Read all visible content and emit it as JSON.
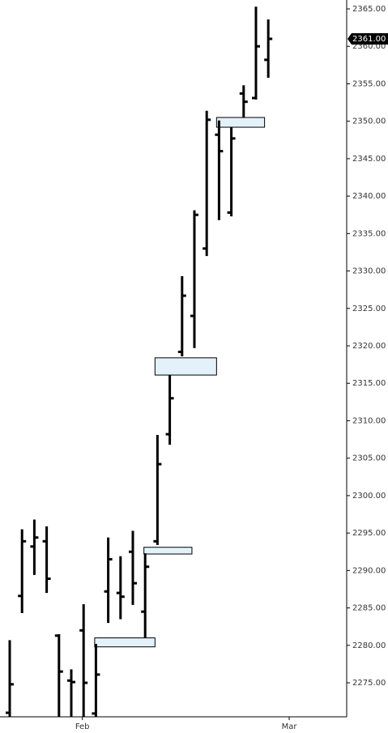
{
  "chart_data": {
    "type": "ohlc",
    "x": [
      0,
      1,
      2,
      3,
      4,
      5,
      6,
      7,
      8,
      9,
      10,
      11,
      12,
      13,
      14,
      15,
      16,
      17,
      18,
      19,
      20,
      21
    ],
    "open": [
      2271.0,
      2286.6,
      2293.2,
      2293.9,
      2281.3,
      2275.3,
      2282.0,
      2270.9,
      2287.2,
      2287.0,
      2292.5,
      2284.5,
      2293.9,
      2308.2,
      2319.2,
      2324.0,
      2333.0,
      2348.2,
      2337.8,
      2353.7,
      2353.1,
      2358.2
    ],
    "high": [
      2280.7,
      2295.5,
      2296.8,
      2295.9,
      2281.5,
      2276.8,
      2285.5,
      2280.2,
      2294.4,
      2291.9,
      2295.3,
      2292.3,
      2308.1,
      2316.1,
      2329.3,
      2338.1,
      2351.4,
      2350.1,
      2349.2,
      2354.8,
      2365.3,
      2363.6
    ],
    "low": [
      2270.5,
      2284.3,
      2289.4,
      2287.0,
      2270.5,
      2270.5,
      2270.5,
      2270.5,
      2283.0,
      2283.5,
      2285.4,
      2281.0,
      2293.4,
      2306.8,
      2318.6,
      2319.7,
      2332.0,
      2336.8,
      2337.3,
      2350.5,
      2352.9,
      2355.8
    ],
    "close": [
      2274.8,
      2293.9,
      2294.4,
      2288.9,
      2276.5,
      2275.1,
      2275.0,
      2276.1,
      2291.5,
      2286.5,
      2288.3,
      2290.5,
      2304.2,
      2313.0,
      2326.7,
      2337.5,
      2350.2,
      2346.0,
      2347.7,
      2352.6,
      2360.0,
      2361.0
    ],
    "color": "#000000",
    "gaps": [
      {
        "x": [
          6.9,
          11.8
        ],
        "y": [
          2279.8,
          2281.0
        ]
      },
      {
        "x": [
          10.9,
          14.8
        ],
        "y": [
          2292.2,
          2293.1
        ]
      },
      {
        "x": [
          11.8,
          16.8
        ],
        "y": [
          2316.1,
          2318.4
        ]
      },
      {
        "x": [
          16.8,
          20.7
        ],
        "y": [
          2349.2,
          2350.5
        ]
      }
    ],
    "gap_color": "#e3f1fb",
    "last_price": {
      "value": 2361,
      "label": "2361.00"
    },
    "xlim": [
      -0.79,
      27.37
    ],
    "xticks": [
      {
        "value": 5.9,
        "label": "Feb"
      },
      {
        "value": 22.7,
        "label": "Mar"
      }
    ],
    "ylim": [
      2270.46,
      2366.19
    ],
    "yticks": [
      {
        "value": 2275,
        "label": "2275.00"
      },
      {
        "value": 2280,
        "label": "2280.00"
      },
      {
        "value": 2285,
        "label": "2285.00"
      },
      {
        "value": 2290,
        "label": "2290.00"
      },
      {
        "value": 2295,
        "label": "2295.00"
      },
      {
        "value": 2300,
        "label": "2300.00"
      },
      {
        "value": 2305,
        "label": "2305.00"
      },
      {
        "value": 2310,
        "label": "2310.00"
      },
      {
        "value": 2315,
        "label": "2315.00"
      },
      {
        "value": 2320,
        "label": "2320.00"
      },
      {
        "value": 2325,
        "label": "2325.00"
      },
      {
        "value": 2330,
        "label": "2330.00"
      },
      {
        "value": 2335,
        "label": "2335.00"
      },
      {
        "value": 2340,
        "label": "2340.00"
      },
      {
        "value": 2345,
        "label": "2345.00"
      },
      {
        "value": 2350,
        "label": "2350.00"
      },
      {
        "value": 2355,
        "label": "2355.00"
      },
      {
        "value": 2360,
        "label": "2360.00"
      },
      {
        "value": 2365,
        "label": "2365.00"
      }
    ]
  }
}
